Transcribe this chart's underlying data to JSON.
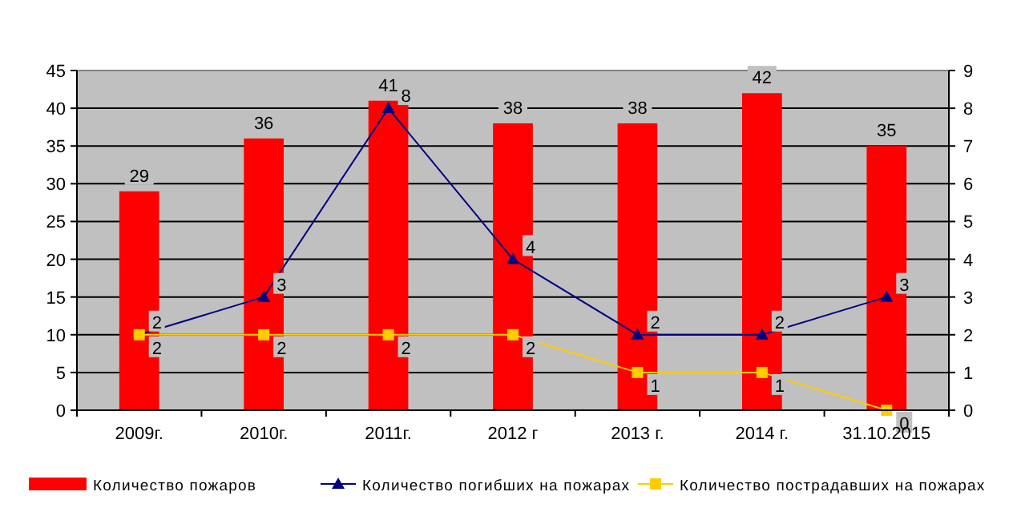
{
  "chart_data": {
    "type": "bar",
    "categories": [
      "2009г.",
      "2010г.",
      "2011г.",
      "2012 г",
      "2013 г.",
      "2014 г.",
      "31.10.2015"
    ],
    "series": [
      {
        "name": "Количество пожаров",
        "color": "#ff0000",
        "values": [
          29,
          36,
          41,
          38,
          38,
          42,
          35
        ]
      },
      {
        "name": "Количество погибших на пожарах",
        "type": "line",
        "axis": "y2",
        "color": "#000080",
        "marker": "triangle",
        "values": [
          2,
          3,
          8,
          4,
          2,
          2,
          3
        ]
      },
      {
        "name": "Количество пострадавших на пожарах",
        "type": "line",
        "axis": "y2",
        "color": "#ffcc00",
        "marker": "square",
        "values": [
          2,
          2,
          2,
          2,
          1,
          1,
          0
        ]
      }
    ],
    "ylim": [
      0,
      45
    ],
    "yticks": [
      0,
      5,
      10,
      15,
      20,
      25,
      30,
      35,
      40,
      45
    ],
    "y2lim": [
      0,
      9
    ],
    "y2ticks": [
      0,
      1,
      2,
      3,
      4,
      5,
      6,
      7,
      8,
      9
    ],
    "grid": "y",
    "legend": "bottom",
    "data_labels": true
  }
}
